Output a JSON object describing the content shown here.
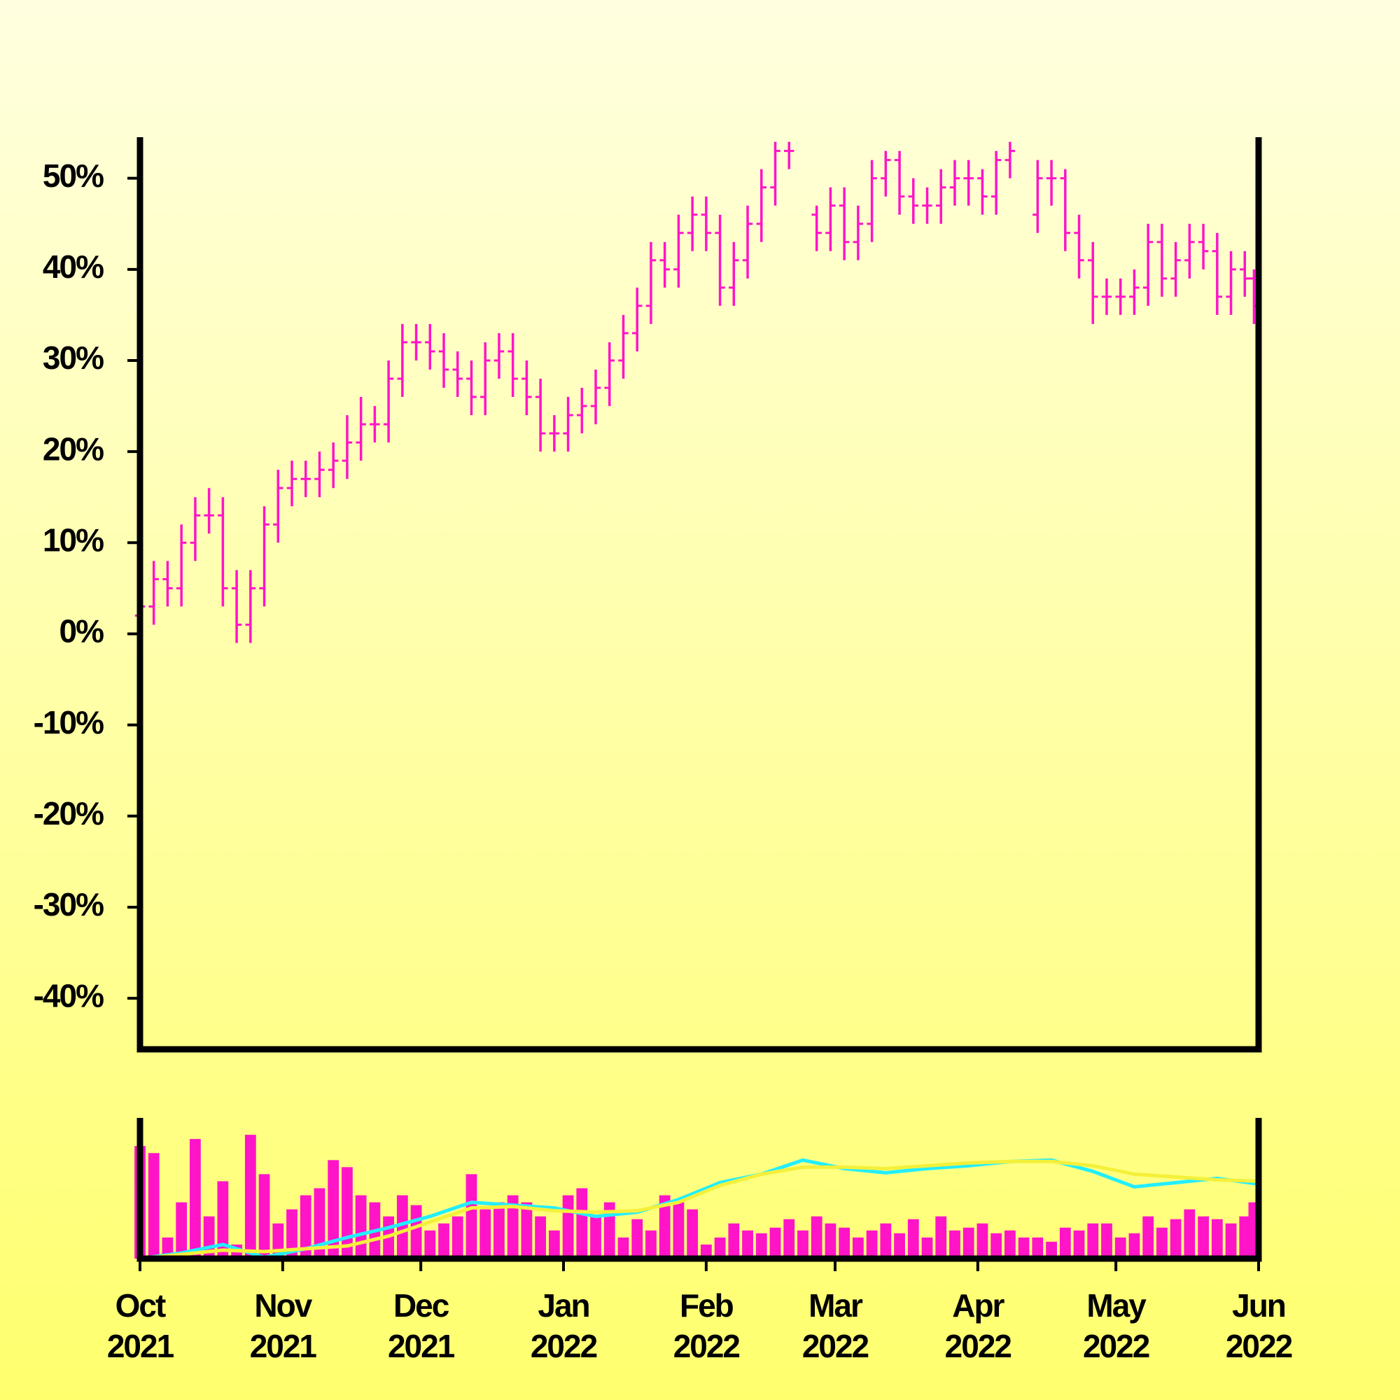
{
  "chart_data": [
    {
      "type": "ohlc",
      "color": "#ff14c8",
      "x": [
        0,
        3,
        6,
        9,
        12,
        15,
        18,
        21,
        24,
        27,
        30,
        33,
        36,
        39,
        42,
        45,
        48,
        51,
        54,
        57,
        60,
        63,
        66,
        69,
        72,
        75,
        78,
        81,
        84,
        87,
        90,
        93,
        96,
        99,
        102,
        105,
        108,
        111,
        114,
        117,
        120,
        123,
        126,
        129,
        132,
        135,
        138,
        141,
        144,
        147,
        150,
        153,
        156,
        159,
        162,
        165,
        168,
        171,
        174,
        177,
        180,
        183,
        186,
        189,
        192,
        195,
        198,
        201,
        204,
        207,
        210,
        213,
        216,
        219,
        222,
        225,
        228,
        231,
        234,
        237,
        240,
        242
      ],
      "open": [
        2,
        3,
        6,
        5,
        10,
        13,
        13,
        5,
        1,
        5,
        12,
        16,
        17,
        17,
        18,
        19,
        21,
        23,
        23,
        28,
        32,
        32,
        31,
        29,
        28,
        26,
        30,
        31,
        28,
        26,
        22,
        22,
        24,
        25,
        27,
        30,
        33,
        36,
        41,
        40,
        44,
        46,
        44,
        38,
        41,
        45,
        49,
        53,
        null,
        46,
        44,
        47,
        43,
        45,
        50,
        52,
        48,
        47,
        47,
        49,
        50,
        50,
        48,
        52,
        null,
        46,
        50,
        50,
        44,
        41,
        37,
        37,
        37,
        38,
        43,
        39,
        41,
        43,
        42,
        37,
        40,
        39
      ],
      "high": [
        5,
        8,
        8,
        12,
        15,
        16,
        15,
        7,
        7,
        14,
        18,
        19,
        19,
        20,
        21,
        24,
        26,
        25,
        30,
        34,
        34,
        34,
        33,
        31,
        30,
        32,
        33,
        33,
        30,
        28,
        24,
        26,
        27,
        29,
        32,
        35,
        38,
        43,
        43,
        46,
        48,
        48,
        46,
        43,
        47,
        51,
        54,
        54,
        null,
        47,
        49,
        49,
        47,
        52,
        53,
        53,
        50,
        49,
        51,
        52,
        52,
        51,
        53,
        54,
        null,
        52,
        52,
        51,
        46,
        43,
        39,
        39,
        40,
        45,
        45,
        43,
        45,
        45,
        44,
        42,
        42,
        40
      ],
      "low": [
        -1,
        1,
        3,
        3,
        8,
        11,
        3,
        -1,
        -1,
        3,
        10,
        14,
        15,
        15,
        16,
        17,
        19,
        21,
        21,
        26,
        30,
        29,
        27,
        26,
        24,
        24,
        28,
        26,
        24,
        20,
        20,
        20,
        22,
        23,
        25,
        28,
        31,
        34,
        38,
        38,
        42,
        42,
        36,
        36,
        39,
        43,
        47,
        51,
        null,
        42,
        42,
        41,
        41,
        43,
        48,
        46,
        45,
        45,
        45,
        47,
        47,
        46,
        46,
        50,
        null,
        44,
        47,
        42,
        39,
        34,
        35,
        35,
        35,
        36,
        37,
        37,
        39,
        40,
        35,
        35,
        37,
        34
      ],
      "close": [
        3,
        6,
        5,
        10,
        13,
        13,
        5,
        1,
        5,
        12,
        16,
        17,
        17,
        18,
        19,
        21,
        23,
        23,
        28,
        32,
        32,
        31,
        29,
        28,
        26,
        30,
        31,
        28,
        26,
        22,
        22,
        24,
        25,
        27,
        30,
        33,
        36,
        41,
        40,
        44,
        46,
        44,
        38,
        41,
        45,
        49,
        53,
        53,
        null,
        44,
        47,
        43,
        45,
        50,
        52,
        48,
        47,
        47,
        49,
        50,
        50,
        48,
        52,
        53,
        null,
        50,
        50,
        44,
        41,
        37,
        37,
        37,
        38,
        43,
        39,
        41,
        43,
        42,
        37,
        40,
        39,
        36
      ],
      "ylim": [
        -45.6,
        54.2
      ],
      "yticks": [
        {
          "value": -40,
          "label": "-40%"
        },
        {
          "value": -30,
          "label": "-30%"
        },
        {
          "value": -20,
          "label": "-20%"
        },
        {
          "value": -10,
          "label": "-10%"
        },
        {
          "value": 0,
          "label": "0%"
        },
        {
          "value": 10,
          "label": "10%"
        },
        {
          "value": 20,
          "label": "20%"
        },
        {
          "value": 30,
          "label": "30%"
        },
        {
          "value": 40,
          "label": "40%"
        },
        {
          "value": 50,
          "label": "50%"
        }
      ],
      "xlim": [
        0,
        243
      ],
      "xticks": [
        {
          "value": 0,
          "label": "Oct\n2021"
        },
        {
          "value": 31,
          "label": "Nov\n2021"
        },
        {
          "value": 61,
          "label": "Dec\n2021"
        },
        {
          "value": 92,
          "label": "Jan\n2022"
        },
        {
          "value": 123,
          "label": "Feb\n2022"
        },
        {
          "value": 151,
          "label": "Mar\n2022"
        },
        {
          "value": 182,
          "label": "Apr\n2022"
        },
        {
          "value": 212,
          "label": "May\n2022"
        },
        {
          "value": 243,
          "label": "Jun\n2022"
        }
      ]
    },
    {
      "type": "volume",
      "color": "#ff14c8",
      "ylim": [
        0,
        100
      ],
      "values": [
        80,
        75,
        15,
        40,
        85,
        30,
        55,
        10,
        88,
        60,
        25,
        35,
        45,
        50,
        70,
        65,
        45,
        40,
        30,
        45,
        38,
        20,
        25,
        30,
        60,
        35,
        40,
        45,
        40,
        30,
        20,
        45,
        50,
        30,
        40,
        15,
        28,
        20,
        45,
        40,
        35,
        10,
        15,
        25,
        20,
        18,
        22,
        28,
        20,
        30,
        25,
        22,
        15,
        20,
        25,
        18,
        28,
        15,
        30,
        20,
        22,
        25,
        18,
        20,
        15,
        15,
        12,
        22,
        20,
        25,
        25,
        15,
        18,
        30,
        22,
        28,
        35,
        30,
        28,
        25,
        30,
        40
      ],
      "lines": [
        {
          "color": "#22eeff",
          "x": [
            0,
            9,
            18,
            27,
            36,
            45,
            54,
            63,
            72,
            81,
            90,
            99,
            108,
            117,
            126,
            135,
            144,
            153,
            162,
            171,
            180,
            189,
            198,
            207,
            216,
            225,
            234,
            243
          ],
          "values": [
            0,
            4,
            10,
            1,
            7,
            15,
            22,
            30,
            40,
            38,
            36,
            30,
            33,
            42,
            54,
            60,
            70,
            64,
            61,
            64,
            66,
            69,
            70,
            62,
            51,
            54,
            57,
            53
          ]
        },
        {
          "color": "#f4f03a",
          "x": [
            0,
            9,
            18,
            27,
            36,
            45,
            54,
            63,
            72,
            81,
            90,
            99,
            108,
            117,
            126,
            135,
            144,
            153,
            162,
            171,
            180,
            189,
            198,
            207,
            216,
            225,
            234,
            243
          ],
          "values": [
            0,
            3,
            6,
            5,
            7,
            9,
            16,
            26,
            36,
            37,
            34,
            33,
            34,
            40,
            52,
            60,
            65,
            65,
            64,
            66,
            68,
            69,
            69,
            66,
            60,
            58,
            56,
            55
          ]
        }
      ]
    }
  ]
}
